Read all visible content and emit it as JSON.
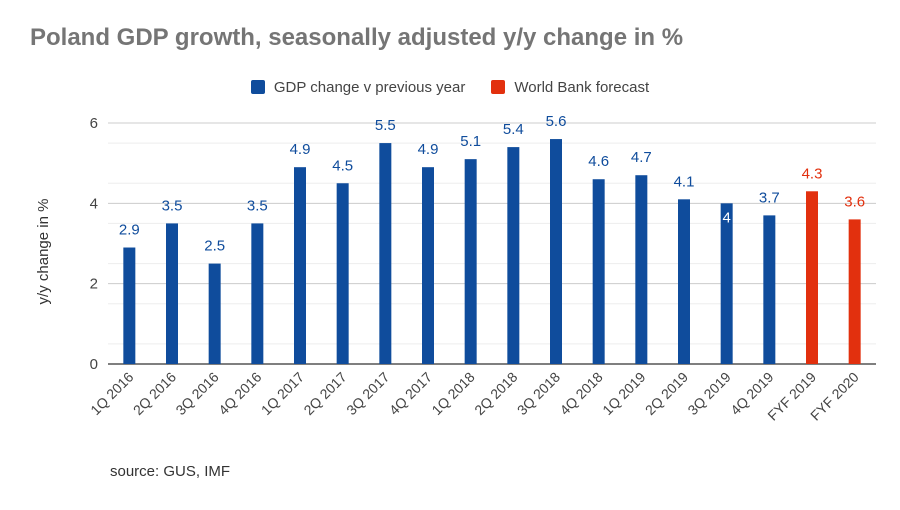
{
  "chart_data": {
    "type": "bar",
    "title": "Poland GDP growth, seasonally adjusted y/y change in %",
    "xlabel": "",
    "ylabel": "y/y change in %",
    "ylim": [
      0,
      6
    ],
    "yticks": [
      0,
      2,
      4,
      6
    ],
    "grid": true,
    "legend_position": "top",
    "categories": [
      "1Q 2016",
      "2Q 2016",
      "3Q 2016",
      "4Q 2016",
      "1Q 2017",
      "2Q 2017",
      "3Q 2017",
      "4Q 2017",
      "1Q 2018",
      "2Q 2018",
      "3Q 2018",
      "4Q 2018",
      "1Q 2019",
      "2Q 2019",
      "3Q 2019",
      "4Q 2019",
      "FYF 2019",
      "FYF 2020"
    ],
    "series": [
      {
        "name": "GDP change v previous year",
        "color": "#0F4C9C",
        "values": [
          2.9,
          3.5,
          2.5,
          3.5,
          4.9,
          4.5,
          5.5,
          4.9,
          5.1,
          5.4,
          5.6,
          4.6,
          4.7,
          4.1,
          4.0,
          3.7,
          null,
          null
        ],
        "labels": [
          "2.9",
          "3.5",
          "2.5",
          "3.5",
          "4.9",
          "4.5",
          "5.5",
          "4.9",
          "5.1",
          "5.4",
          "5.6",
          "4.6",
          "4.7",
          "4.1",
          "4",
          "3.7",
          "",
          ""
        ]
      },
      {
        "name": "World Bank forecast",
        "color": "#E2300E",
        "values": [
          null,
          null,
          null,
          null,
          null,
          null,
          null,
          null,
          null,
          null,
          null,
          null,
          null,
          null,
          null,
          null,
          4.3,
          3.6
        ],
        "labels": [
          "",
          "",
          "",
          "",
          "",
          "",
          "",
          "",
          "",
          "",
          "",
          "",
          "",
          "",
          "",
          "",
          "4.3",
          "3.6"
        ]
      }
    ]
  },
  "source": "source: GUS, IMF"
}
